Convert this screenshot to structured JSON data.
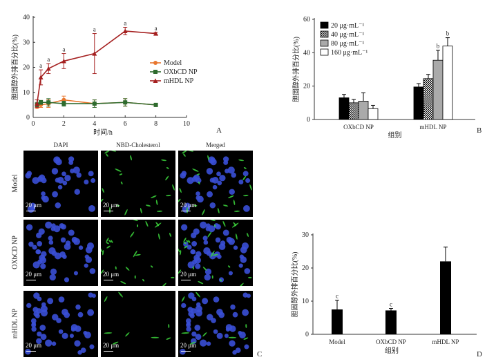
{
  "figure": {
    "panel_labels": {
      "A": "A",
      "B": "B",
      "C": "C",
      "D": "D"
    },
    "chart_data": [
      {
        "panel": "A",
        "type": "line",
        "xlabel": "时间/h",
        "ylabel": "胆固醇外排百分比(%)",
        "xlim": [
          0,
          10
        ],
        "ylim": [
          0,
          40
        ],
        "xticks": [
          0,
          2,
          4,
          6,
          8,
          10
        ],
        "yticks": [
          0,
          10,
          20,
          30,
          40
        ],
        "legend_position": "right",
        "series": [
          {
            "name": "Model",
            "color": "#e8772e",
            "marker": "circle",
            "x": [
              0.25,
              0.5,
              1,
              2,
              4,
              6,
              8
            ],
            "y": [
              4.5,
              5,
              5.5,
              7,
              5.5,
              6,
              5
            ],
            "err": [
              1,
              1,
              1.5,
              1.5,
              1.5,
              1.5,
              0.5
            ]
          },
          {
            "name": "OXbCD NP",
            "color": "#2e6b2e",
            "marker": "square",
            "x": [
              0.25,
              0.5,
              1,
              2,
              4,
              6,
              8
            ],
            "y": [
              5,
              6,
              6,
              5.5,
              5.5,
              6,
              5
            ],
            "err": [
              1,
              0.8,
              1.5,
              1,
              1.5,
              1.5,
              0.5
            ]
          },
          {
            "name": "mHDL NP",
            "color": "#a52020",
            "marker": "triangle",
            "x": [
              0.25,
              0.5,
              1,
              2,
              4,
              6,
              8
            ],
            "y": [
              5.5,
              16,
              19.5,
              22.5,
              25.5,
              34.5,
              33.5
            ],
            "err": [
              1.5,
              3,
              2,
              3,
              8,
              1.5,
              0.5
            ],
            "annotations": [
              "",
              "a",
              "a",
              "a",
              "a",
              "a",
              "a"
            ]
          }
        ]
      },
      {
        "panel": "B",
        "type": "bar",
        "xlabel": "组别",
        "ylabel": "胆固醇外排百分比(%)",
        "ylim": [
          0,
          60
        ],
        "yticks": [
          0,
          20,
          40,
          60
        ],
        "categories": [
          "OXbCD NP",
          "mHDL NP"
        ],
        "legend_position": "top-left",
        "series": [
          {
            "name": "20 μg·mL⁻¹",
            "fill": "#000000",
            "pattern": "solid",
            "values": [
              13,
              19.5
            ],
            "err": [
              2,
              2
            ],
            "annotations": [
              "",
              ""
            ]
          },
          {
            "name": "40 μg·mL⁻¹",
            "fill": "#ffffff",
            "pattern": "checker",
            "values": [
              10,
              24.5
            ],
            "err": [
              2,
              2.5
            ],
            "annotations": [
              "",
              ""
            ]
          },
          {
            "name": "80 μg·mL⁻¹",
            "fill": "#aaaaaa",
            "pattern": "solid",
            "values": [
              11,
              35.5
            ],
            "err": [
              5,
              6
            ],
            "annotations": [
              "",
              "b"
            ]
          },
          {
            "name": "160 μg·mL⁻¹",
            "fill": "#ffffff",
            "pattern": "solid",
            "values": [
              6.5,
              44
            ],
            "err": [
              2,
              5
            ],
            "annotations": [
              "",
              "b"
            ]
          }
        ]
      },
      {
        "panel": "D",
        "type": "bar",
        "xlabel": "组别",
        "ylabel": "胆固醇外排百分比(%)",
        "ylim": [
          0,
          30
        ],
        "yticks": [
          0,
          10,
          20,
          30
        ],
        "categories": [
          "Model",
          "OXbCD NP",
          "mHDL NP"
        ],
        "values": [
          7.5,
          7.2,
          22
        ],
        "err": [
          2.8,
          0.6,
          4.3
        ],
        "annotations": [
          "c",
          "c",
          ""
        ],
        "color": "#000000"
      }
    ],
    "microscopy": {
      "columns": [
        "DAPI",
        "NBD-Cholesterol",
        "Merged"
      ],
      "rows": [
        "Model",
        "OXbCD NP",
        "mHDL NP"
      ],
      "scale_bar": "20 μm"
    }
  }
}
